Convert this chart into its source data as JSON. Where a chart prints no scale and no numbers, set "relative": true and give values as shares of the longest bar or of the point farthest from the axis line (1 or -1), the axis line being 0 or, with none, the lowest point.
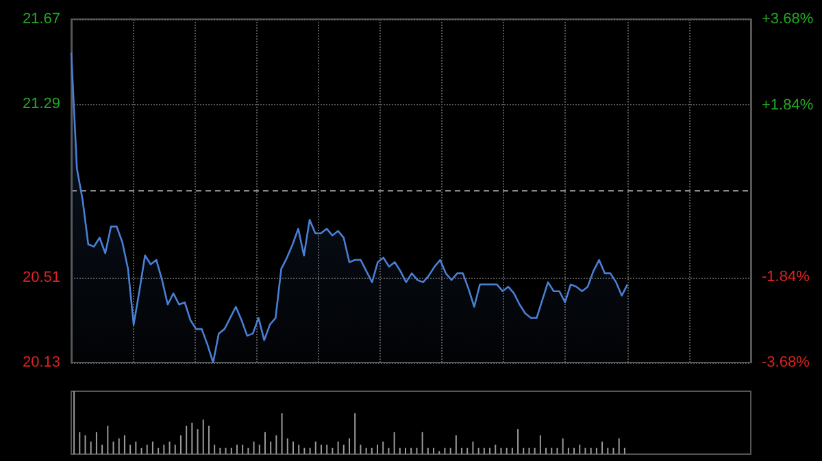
{
  "chart_data": [
    {
      "type": "area",
      "categories": [
        null,
        null,
        null,
        null,
        null,
        null,
        null,
        null,
        null,
        null,
        null,
        null,
        null,
        null,
        null,
        null,
        null,
        null,
        null,
        null,
        null,
        null,
        null,
        null,
        null,
        null,
        null,
        null,
        null,
        null,
        null,
        null,
        null,
        null,
        null,
        null,
        null,
        null,
        null,
        null,
        null,
        null,
        null,
        null,
        null,
        null,
        null,
        null,
        null,
        null,
        null,
        null,
        null,
        null,
        null,
        null,
        null,
        null,
        null,
        null,
        null,
        null,
        null,
        null,
        null,
        null,
        null,
        null,
        null,
        null,
        null,
        null,
        null,
        null,
        null,
        null,
        null,
        null,
        null,
        null,
        null,
        null,
        null,
        null,
        null,
        null,
        null,
        null,
        null,
        null,
        null,
        null,
        null,
        null,
        null,
        null,
        null,
        null,
        null
      ],
      "series": [
        {
          "color": "#4a7fd4",
          "values": [
            21.52,
            21.0,
            20.86,
            20.66,
            20.65,
            20.69,
            20.62,
            20.74,
            20.74,
            20.67,
            20.55,
            20.3,
            20.45,
            20.61,
            20.57,
            20.59,
            20.5,
            20.39,
            20.44,
            20.39,
            20.4,
            20.32,
            20.28,
            20.28,
            20.21,
            20.13,
            20.26,
            20.28,
            20.33,
            20.38,
            20.32,
            20.25,
            20.26,
            20.33,
            20.23,
            20.3,
            20.33,
            20.55,
            20.6,
            20.66,
            20.73,
            20.61,
            20.77,
            20.71,
            20.71,
            20.73,
            20.7,
            20.72,
            20.69,
            20.58,
            20.59,
            20.59,
            20.54,
            20.49,
            20.58,
            20.6,
            20.56,
            20.58,
            20.54,
            20.49,
            20.53,
            20.5,
            20.49,
            20.52,
            20.56,
            20.59,
            20.53,
            20.5,
            20.53,
            20.53,
            20.46,
            20.38,
            20.48,
            20.48,
            20.48,
            20.48,
            20.45,
            20.47,
            20.44,
            20.39,
            20.35,
            20.33,
            20.33,
            20.41,
            20.49,
            20.45,
            20.45,
            20.4,
            20.48,
            20.47,
            20.45,
            20.47,
            20.54,
            20.59,
            20.53,
            20.53,
            20.49,
            20.43,
            20.48
          ]
        }
      ],
      "ylim": [
        20.13,
        21.67
      ],
      "yticks": [
        20.13,
        20.51,
        21.29,
        21.67
      ],
      "y2lim": [
        -3.68,
        3.68
      ],
      "y2ticks": [
        {
          "value": -3.68,
          "label": "-3.68%"
        },
        {
          "value": -1.84,
          "label": "-1.84%"
        },
        {
          "value": 1.84,
          "label": "+1.84%"
        },
        {
          "value": 3.68,
          "label": "+3.68%"
        }
      ],
      "ref_lines": [
        {
          "axis": "y",
          "value": 20.9,
          "line_style": "dashed"
        }
      ],
      "grid": true,
      "tick_labels": "y"
    },
    {
      "type": "bar",
      "relative": true,
      "color": "#9a9a9a",
      "tick_labels": false,
      "categories": [
        null,
        null,
        null,
        null,
        null,
        null,
        null,
        null,
        null,
        null,
        null,
        null,
        null,
        null,
        null,
        null,
        null,
        null,
        null,
        null,
        null,
        null,
        null,
        null,
        null,
        null,
        null,
        null,
        null,
        null,
        null,
        null,
        null,
        null,
        null,
        null,
        null,
        null,
        null,
        null,
        null,
        null,
        null,
        null,
        null,
        null,
        null,
        null,
        null,
        null,
        null,
        null,
        null,
        null,
        null,
        null,
        null,
        null,
        null,
        null,
        null,
        null,
        null,
        null,
        null,
        null,
        null,
        null,
        null,
        null,
        null,
        null,
        null,
        null,
        null,
        null,
        null,
        null,
        null,
        null,
        null,
        null,
        null,
        null,
        null,
        null,
        null,
        null,
        null,
        null,
        null,
        null,
        null,
        null,
        null,
        null,
        null,
        null,
        null
      ],
      "values": [
        1,
        0.35,
        0.3,
        0.2,
        0.35,
        0.15,
        0.45,
        0.2,
        0.25,
        0.3,
        0.15,
        0.2,
        0.1,
        0.15,
        0.2,
        0.1,
        0.15,
        0.2,
        0.15,
        0.3,
        0.45,
        0.5,
        0.4,
        0.55,
        0.45,
        0.15,
        0.1,
        0.1,
        0.1,
        0.15,
        0.15,
        0.1,
        0.2,
        0.15,
        0.35,
        0.2,
        0.3,
        0.65,
        0.25,
        0.2,
        0.15,
        0.1,
        0.1,
        0.2,
        0.15,
        0.15,
        0.1,
        0.2,
        0.15,
        0.25,
        0.65,
        0.15,
        0.1,
        0.1,
        0.15,
        0.2,
        0.1,
        0.35,
        0.1,
        0.1,
        0.1,
        0.1,
        0.35,
        0.1,
        0.1,
        0.05,
        0.1,
        0.1,
        0.3,
        0.1,
        0.1,
        0.2,
        0.1,
        0.1,
        0.1,
        0.15,
        0.1,
        0.1,
        0.1,
        0.4,
        0.1,
        0.1,
        0.1,
        0.3,
        0.1,
        0.1,
        0.1,
        0.25,
        0.1,
        0.1,
        0.15,
        0.1,
        0.1,
        0.1,
        0.2,
        0.1,
        0.1,
        0.25,
        0.1
      ]
    }
  ]
}
